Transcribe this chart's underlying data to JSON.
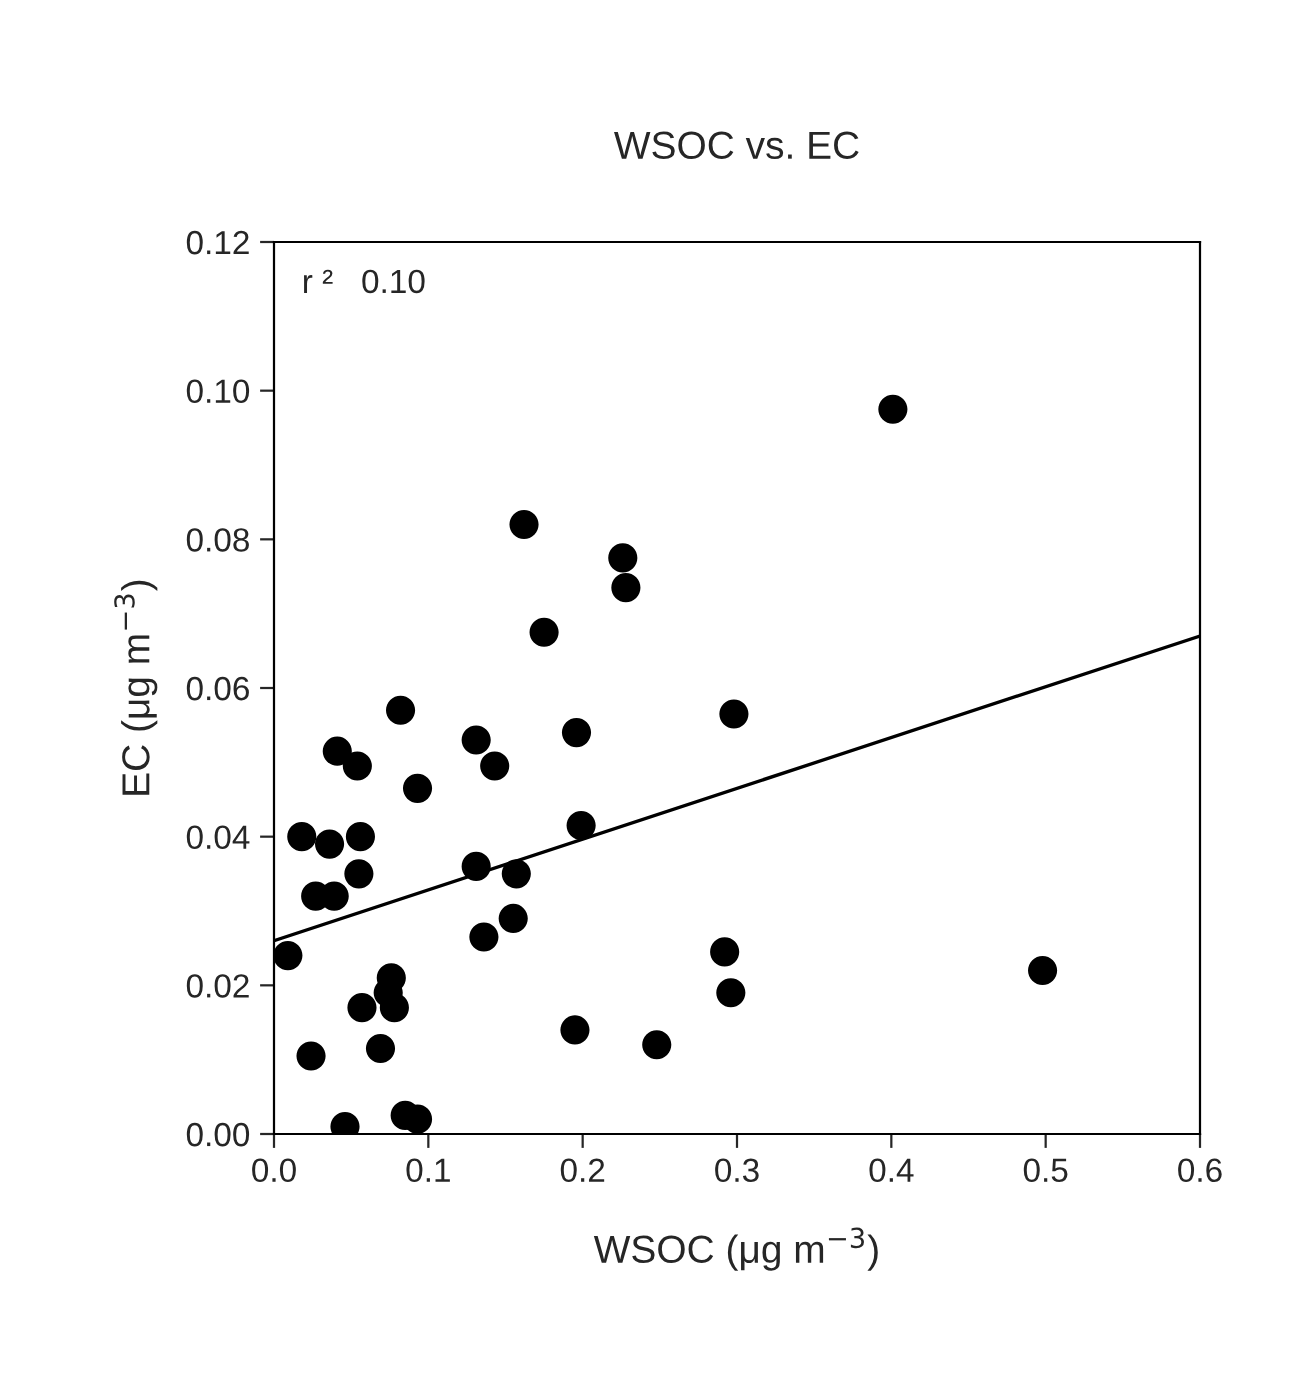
{
  "chart_data": {
    "type": "scatter",
    "title": "WSOC vs. EC",
    "xlabel": "WSOC (μg m$^{−3}$)",
    "ylabel": "EC (μg m$^{−3}$)",
    "annotations": [
      "r ²   0.10"
    ],
    "xlim": [
      0.0,
      0.6
    ],
    "xticks": [
      {
        "value": 0,
        "label": "0.0"
      },
      0.1,
      0.2,
      0.3,
      0.4,
      0.5,
      0.6
    ],
    "ylim": [
      0.0,
      0.12
    ],
    "yticks": [
      {
        "value": 0,
        "label": "0.00"
      },
      {
        "value": 0.02,
        "label": "0.02"
      },
      {
        "value": 0.04,
        "label": "0.04"
      },
      {
        "value": 0.06,
        "label": "0.06"
      },
      {
        "value": 0.08,
        "label": "0.08"
      },
      {
        "value": 0.1,
        "label": "0.10"
      },
      {
        "value": 0.12,
        "label": "0.12"
      }
    ],
    "grid": false,
    "marker": "circle",
    "series": [
      {
        "color": "#000000",
        "x": [
          0.401,
          0.162,
          0.226,
          0.228,
          0.175,
          0.082,
          0.298,
          0.196,
          0.131,
          0.041,
          0.054,
          0.143,
          0.093,
          0.199,
          0.018,
          0.056,
          0.036,
          0.131,
          0.055,
          0.157,
          0.027,
          0.039,
          0.155,
          0.136,
          0.009,
          0.292,
          0.076,
          0.074,
          0.296,
          0.057,
          0.078,
          0.498,
          0.195,
          0.248,
          0.024,
          0.069,
          0.046,
          0.085,
          0.093
        ],
        "values": [
          0.0975,
          0.082,
          0.0775,
          0.0735,
          0.0675,
          0.057,
          0.0565,
          0.054,
          0.053,
          0.0515,
          0.0495,
          0.0495,
          0.0465,
          0.0415,
          0.04,
          0.04,
          0.039,
          0.036,
          0.035,
          0.035,
          0.032,
          0.032,
          0.029,
          0.0265,
          0.024,
          0.0245,
          0.021,
          0.019,
          0.019,
          0.017,
          0.017,
          0.022,
          0.014,
          0.012,
          0.0105,
          0.0115,
          0.001,
          0.0025,
          0.002
        ]
      },
      {
        "type": "line",
        "marker": "none",
        "color": "#000000",
        "line_style": "solid",
        "x": [
          0.0,
          0.6
        ],
        "values": [
          0.026,
          0.067
        ]
      }
    ]
  }
}
